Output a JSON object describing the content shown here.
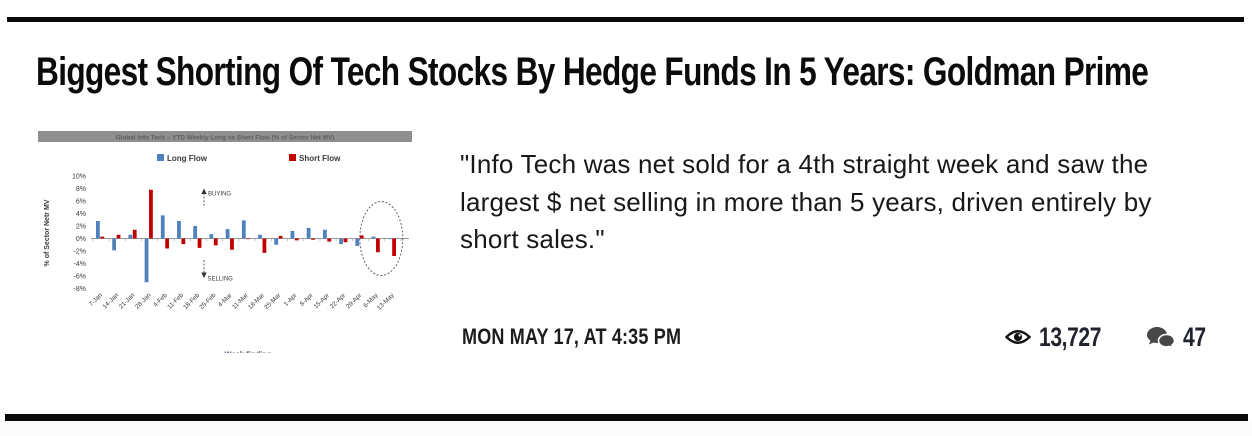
{
  "article": {
    "headline": "Biggest Shorting Of Tech Stocks By Hedge Funds In 5 Years: Goldman Prime",
    "quote_lines": [
      "\"Info Tech was net sold for a 4th straight week and saw the",
      "largest $ net selling in more than 5 years, driven entirely by",
      "short sales.\""
    ],
    "timestamp": "MON MAY 17, AT 4:35 PM",
    "views": "13,727",
    "comments": "47"
  },
  "icons": {
    "views": "eye-icon",
    "comments": "speech-bubbles-icon"
  },
  "colors": {
    "rule": "#0a0a0a",
    "long_flow_blue": "#4f81bd",
    "short_flow_red": "#c00000",
    "chart_title_bar": "#8f8f8f",
    "count_text": "#20222e"
  },
  "chart_data": {
    "type": "bar",
    "title": "Global Info Tech – YTD Weekly Long vs Short Flow (% of Sector Net MV)",
    "xlabel": "Week Ending",
    "ylabel": "% of Sector Netr MV",
    "ylim": [
      -8,
      10
    ],
    "ytick_step": 2,
    "grid": false,
    "legend_position": "top",
    "categories": [
      "7-Jan",
      "14-Jan",
      "21-Jan",
      "28-Jan",
      "4-Feb",
      "11-Feb",
      "18-Feb",
      "25-Feb",
      "4-Mar",
      "11-Mar",
      "18-Mar",
      "25-Mar",
      "1-Apr",
      "8-Apr",
      "15-Apr",
      "22-Apr",
      "29-Apr",
      "6-May",
      "13-May"
    ],
    "series": [
      {
        "name": "Long Flow",
        "color": "#4f81bd",
        "values": [
          2.8,
          -1.9,
          0.6,
          -7.0,
          3.7,
          2.8,
          2.0,
          0.7,
          1.5,
          2.9,
          0.6,
          -1.0,
          1.2,
          1.7,
          1.4,
          -0.9,
          -1.2,
          0.3,
          -0.1
        ]
      },
      {
        "name": "Short Flow",
        "color": "#c00000",
        "values": [
          0.3,
          0.6,
          1.4,
          7.8,
          -1.6,
          -0.9,
          -1.5,
          -1.1,
          -1.8,
          -0.1,
          -2.3,
          0.4,
          -0.3,
          -0.2,
          -0.5,
          -0.6,
          0.5,
          -2.2,
          -2.8
        ]
      }
    ],
    "annotations": [
      {
        "text": "BUYING",
        "direction": "up"
      },
      {
        "text": "SELLING",
        "direction": "down"
      }
    ],
    "highlight": {
      "type": "dashed-ellipse",
      "categories": [
        "6-May",
        "13-May"
      ]
    }
  }
}
